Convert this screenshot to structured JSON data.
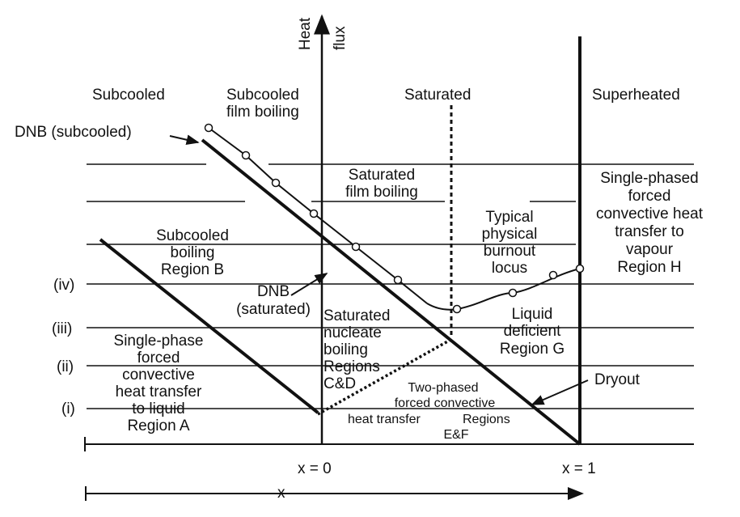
{
  "axes": {
    "heat_flux_label_line1": "Heat",
    "heat_flux_label_line2": "flux",
    "x_label": "x",
    "x0_label": "x = 0",
    "x1_label": "x = 1"
  },
  "zones": {
    "subcooled": "Subcooled",
    "subcooled_film_line1": "Subcooled",
    "subcooled_film_line2": "film boiling",
    "saturated": "Saturated",
    "superheated": "Superheated"
  },
  "levels": {
    "iv": "(iv)",
    "iii": "(iii)",
    "ii": "(ii)",
    "i": "(i)"
  },
  "labels": {
    "dnb_subcooled": "DNB (subcooled)",
    "dnb_saturated_line1": "DNB",
    "dnb_saturated_line2": "(saturated)",
    "dryout": "Dryout",
    "sat_film_line1": "Saturated",
    "sat_film_line2": "film boiling",
    "burnout_line1": "Typical",
    "burnout_line2": "physical",
    "burnout_line3": "burnout",
    "burnout_line4": "locus",
    "single_vapour_line1": "Single-phased",
    "single_vapour_line2": "forced",
    "single_vapour_line3": "convective heat",
    "single_vapour_line4": "transfer to",
    "single_vapour_line5": "vapour",
    "single_vapour_line6": "Region H",
    "sub_boiling_line1": "Subcooled",
    "sub_boiling_line2": "boiling",
    "sub_boiling_line3": "Region B",
    "sat_nucleate_line1": "Saturated",
    "sat_nucleate_line2": "nucleate",
    "sat_nucleate_line3": "boiling",
    "sat_nucleate_line4": "Regions",
    "sat_nucleate_line5": "C&D",
    "liquid_def_line1": "Liquid",
    "liquid_def_line2": "deficient",
    "liquid_def_line3": "Region G",
    "single_liquid_line1": "Single-phase",
    "single_liquid_line2": "forced",
    "single_liquid_line3": "convective",
    "single_liquid_line4": "heat transfer",
    "single_liquid_line5": "to liquid",
    "single_liquid_line6": "Region A",
    "two_phase_line1": "Two-phased",
    "two_phase_line2": "forced convective",
    "two_phase_line3": "heat transfer",
    "two_phase_line4": "Regions",
    "two_phase_line5": "E&F"
  }
}
